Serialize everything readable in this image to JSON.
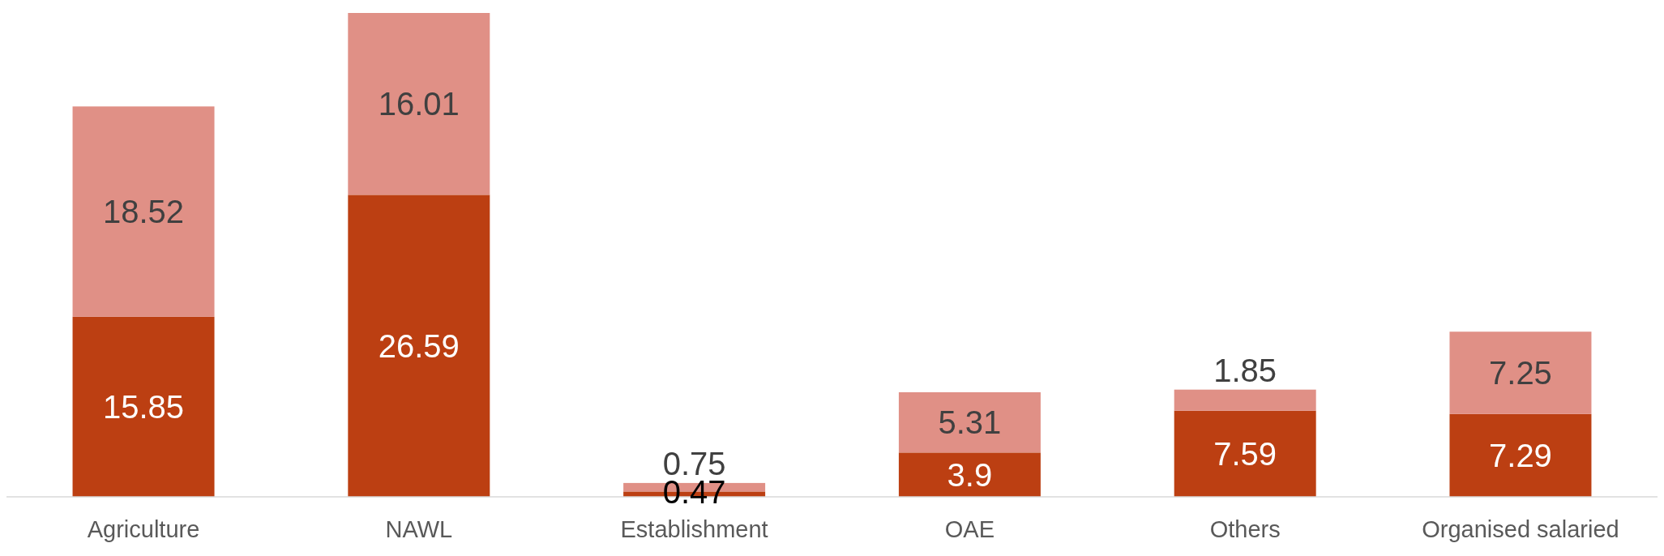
{
  "chart_data": {
    "type": "bar",
    "stacked": true,
    "data_labels": true,
    "categories": [
      "Agriculture",
      "NAWL",
      "Establishment",
      "OAE",
      "Others",
      "Organised salaried"
    ],
    "series": [
      {
        "color": "#bc3f12",
        "values": [
          15.85,
          26.59,
          0.47,
          3.9,
          7.59,
          7.29
        ]
      },
      {
        "color": "#e09086",
        "values": [
          18.52,
          16.01,
          0.75,
          5.31,
          1.85,
          7.25
        ]
      }
    ]
  }
}
